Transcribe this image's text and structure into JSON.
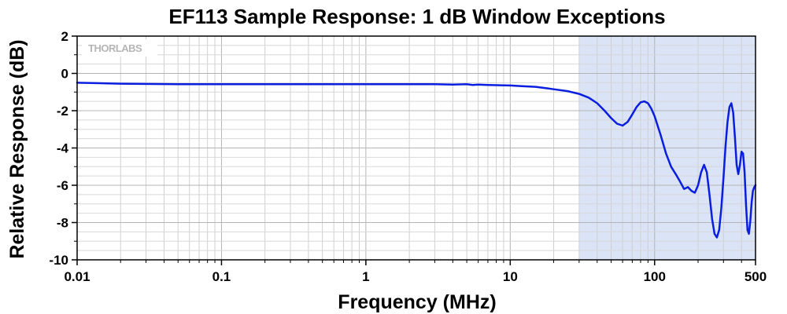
{
  "chart_data": {
    "type": "line",
    "title": "EF113 Sample Response: 1 dB Window Exceptions",
    "xlabel": "Frequency (MHz)",
    "ylabel": "Relative Response (dB)",
    "xscale": "log",
    "xlim": [
      0.01,
      500
    ],
    "ylim": [
      -10,
      2
    ],
    "xticks": [
      0.01,
      0.1,
      1,
      10,
      100,
      500
    ],
    "xtick_labels": [
      "0.01",
      "0.1",
      "1",
      "10",
      "100",
      "500"
    ],
    "yticks": [
      2,
      0,
      -2,
      -4,
      -6,
      -8,
      -10
    ],
    "ytick_labels": [
      "2",
      "0",
      "-2",
      "-4",
      "-6",
      "-8",
      "-10"
    ],
    "grid": true,
    "shaded_region": {
      "x": [
        30,
        500
      ],
      "color": "#dbe3f6"
    },
    "logo": "THORLABS",
    "series": [
      {
        "color": "#0a1ee0",
        "x": [
          0.01,
          0.02,
          0.05,
          0.1,
          0.2,
          0.5,
          1,
          2,
          3,
          4,
          5,
          5.5,
          6,
          7,
          8,
          10,
          12,
          15,
          18,
          20,
          25,
          30,
          35,
          40,
          45,
          50,
          55,
          60,
          65,
          70,
          75,
          80,
          85,
          90,
          95,
          100,
          110,
          120,
          130,
          140,
          150,
          160,
          170,
          180,
          190,
          200,
          210,
          220,
          230,
          240,
          250,
          260,
          270,
          280,
          290,
          300,
          310,
          320,
          330,
          340,
          350,
          360,
          370,
          380,
          390,
          400,
          410,
          420,
          430,
          440,
          450,
          460,
          470,
          480,
          490,
          500
        ],
        "y": [
          -0.5,
          -0.55,
          -0.58,
          -0.58,
          -0.58,
          -0.58,
          -0.58,
          -0.58,
          -0.58,
          -0.6,
          -0.58,
          -0.62,
          -0.6,
          -0.62,
          -0.63,
          -0.65,
          -0.68,
          -0.72,
          -0.8,
          -0.85,
          -0.95,
          -1.1,
          -1.3,
          -1.6,
          -2.0,
          -2.4,
          -2.7,
          -2.8,
          -2.6,
          -2.2,
          -1.8,
          -1.55,
          -1.5,
          -1.6,
          -1.9,
          -2.3,
          -3.3,
          -4.3,
          -5.0,
          -5.4,
          -5.8,
          -6.2,
          -6.1,
          -6.3,
          -6.4,
          -6.0,
          -5.3,
          -4.9,
          -5.3,
          -6.5,
          -7.8,
          -8.6,
          -8.8,
          -8.4,
          -7.2,
          -5.6,
          -3.9,
          -2.6,
          -1.8,
          -1.6,
          -2.1,
          -3.4,
          -4.9,
          -5.4,
          -4.9,
          -4.2,
          -4.3,
          -5.3,
          -7.1,
          -8.4,
          -8.6,
          -7.9,
          -6.9,
          -6.3,
          -6.1,
          -6.0
        ]
      }
    ]
  }
}
